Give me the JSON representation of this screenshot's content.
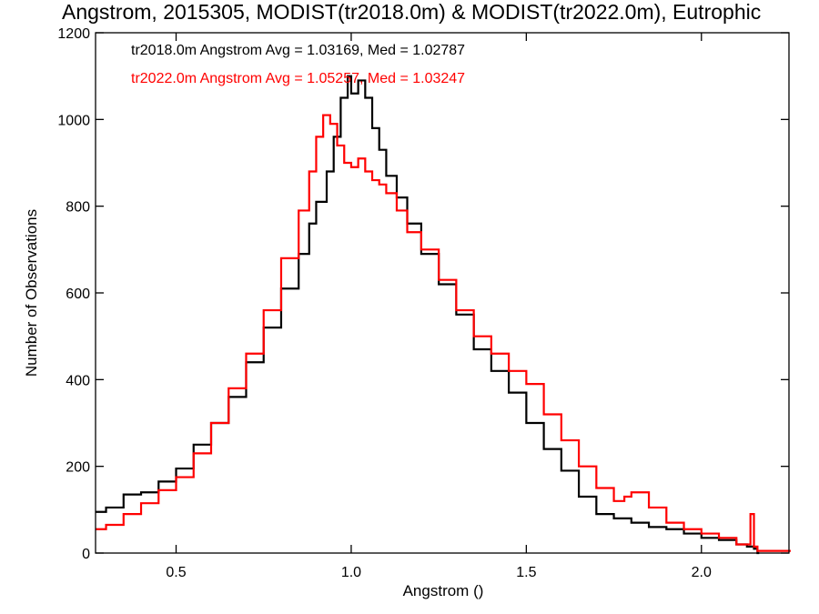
{
  "chart_data": {
    "type": "line",
    "step": true,
    "title": "Angstrom, 2015305, MODIST(tr2018.0m) & MODIST(tr2022.0m), Eutrophic",
    "xlabel": "Angstrom ()",
    "ylabel": "Number of Observations",
    "xlim": [
      0.27,
      2.25
    ],
    "ylim": [
      0,
      1200
    ],
    "xticks": [
      "0.5",
      "1.0",
      "1.5",
      "2.0"
    ],
    "xtick_values": [
      0.5,
      1.0,
      1.5,
      2.0
    ],
    "yticks": [
      "0",
      "200",
      "400",
      "600",
      "800",
      "1000",
      "1200"
    ],
    "ytick_values": [
      0,
      200,
      400,
      600,
      800,
      1000,
      1200
    ],
    "grid": false,
    "legend_placement": "top-left",
    "annotations": [
      {
        "text": "tr2018.0m Angstrom Avg = 1.03169, Med = 1.02787",
        "color": "#000000"
      },
      {
        "text": "tr2022.0m Angstrom Avg = 1.05257, Med = 1.03247",
        "color": "#ff0000"
      }
    ],
    "series": [
      {
        "color": "#000000",
        "x": [
          0.27,
          0.3,
          0.35,
          0.4,
          0.45,
          0.5,
          0.55,
          0.6,
          0.65,
          0.7,
          0.75,
          0.8,
          0.85,
          0.88,
          0.9,
          0.93,
          0.95,
          0.97,
          0.99,
          1.0,
          1.02,
          1.04,
          1.06,
          1.08,
          1.1,
          1.13,
          1.16,
          1.2,
          1.25,
          1.3,
          1.35,
          1.4,
          1.45,
          1.5,
          1.55,
          1.6,
          1.65,
          1.7,
          1.75,
          1.8,
          1.85,
          1.9,
          1.95,
          2.0,
          2.05,
          2.1,
          2.13,
          2.15,
          2.16
        ],
        "values": [
          95,
          105,
          135,
          140,
          165,
          195,
          250,
          300,
          360,
          440,
          520,
          610,
          690,
          760,
          810,
          880,
          960,
          1050,
          1100,
          1060,
          1090,
          1050,
          980,
          930,
          870,
          820,
          760,
          690,
          620,
          550,
          470,
          420,
          370,
          300,
          240,
          190,
          130,
          90,
          80,
          70,
          60,
          55,
          45,
          35,
          30,
          20,
          15,
          10,
          0
        ]
      },
      {
        "color": "#ff0000",
        "x": [
          0.27,
          0.3,
          0.35,
          0.4,
          0.45,
          0.5,
          0.55,
          0.6,
          0.65,
          0.7,
          0.75,
          0.8,
          0.85,
          0.88,
          0.9,
          0.92,
          0.94,
          0.96,
          0.98,
          1.0,
          1.02,
          1.04,
          1.06,
          1.08,
          1.1,
          1.13,
          1.16,
          1.2,
          1.25,
          1.3,
          1.35,
          1.4,
          1.45,
          1.5,
          1.55,
          1.6,
          1.65,
          1.7,
          1.75,
          1.78,
          1.8,
          1.85,
          1.9,
          1.95,
          2.0,
          2.05,
          2.1,
          2.14,
          2.15,
          2.16,
          2.25
        ],
        "values": [
          55,
          65,
          90,
          115,
          145,
          175,
          230,
          300,
          380,
          460,
          560,
          680,
          790,
          880,
          960,
          1010,
          990,
          940,
          900,
          890,
          910,
          880,
          860,
          850,
          830,
          790,
          740,
          700,
          630,
          560,
          500,
          460,
          420,
          390,
          320,
          260,
          200,
          150,
          120,
          130,
          140,
          105,
          70,
          55,
          45,
          35,
          20,
          90,
          15,
          5,
          5
        ]
      }
    ]
  }
}
